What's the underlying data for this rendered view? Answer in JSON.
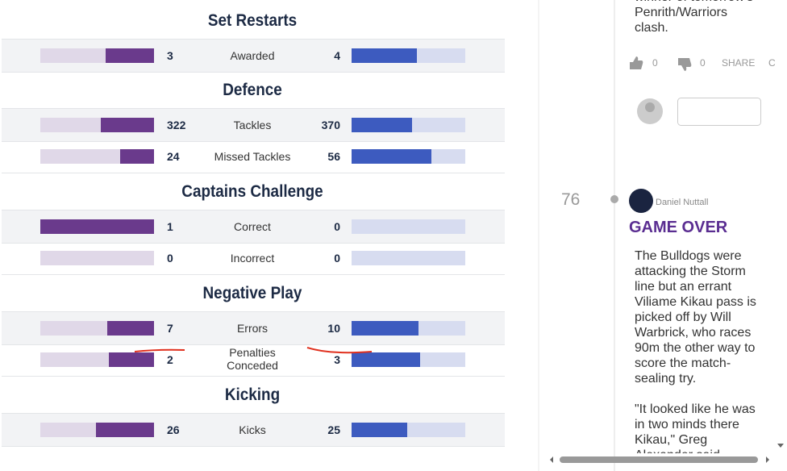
{
  "stats": {
    "sections": [
      {
        "title": "Set Restarts",
        "rows": [
          {
            "label": "Awarded",
            "home": 3,
            "away": 4
          }
        ]
      },
      {
        "title": "Defence",
        "rows": [
          {
            "label": "Tackles",
            "home": 322,
            "away": 370
          },
          {
            "label": "Missed Tackles",
            "home": 24,
            "away": 56
          }
        ]
      },
      {
        "title": "Captains Challenge",
        "rows": [
          {
            "label": "Correct",
            "home": 1,
            "away": 0
          },
          {
            "label": "Incorrect",
            "home": 0,
            "away": 0
          }
        ]
      },
      {
        "title": "Negative Play",
        "rows": [
          {
            "label": "Errors",
            "home": 7,
            "away": 10
          },
          {
            "label": "Penalties Conceded",
            "home": 2,
            "away": 3
          }
        ]
      },
      {
        "title": "Kicking",
        "rows": [
          {
            "label": "Kicks",
            "home": 26,
            "away": 25
          }
        ]
      }
    ]
  },
  "feed": {
    "prev_comment": {
      "text": "winner of tomorrow's Penrith/Warriors clash.",
      "likes": 0,
      "dislikes": 0,
      "share": "SHARE",
      "more": "C"
    },
    "post": {
      "number": 76,
      "author": "Daniel Nuttall",
      "title": "GAME OVER",
      "paragraphs": [
        "The Bulldogs were attacking the Storm line but an errant Viliame Kikau pass is picked off by Will Warbrick, who races 90m the other way to score the match-sealing try.",
        "\"It looked like he was in two minds there Kikau,\" Greg Alexander said."
      ]
    }
  }
}
